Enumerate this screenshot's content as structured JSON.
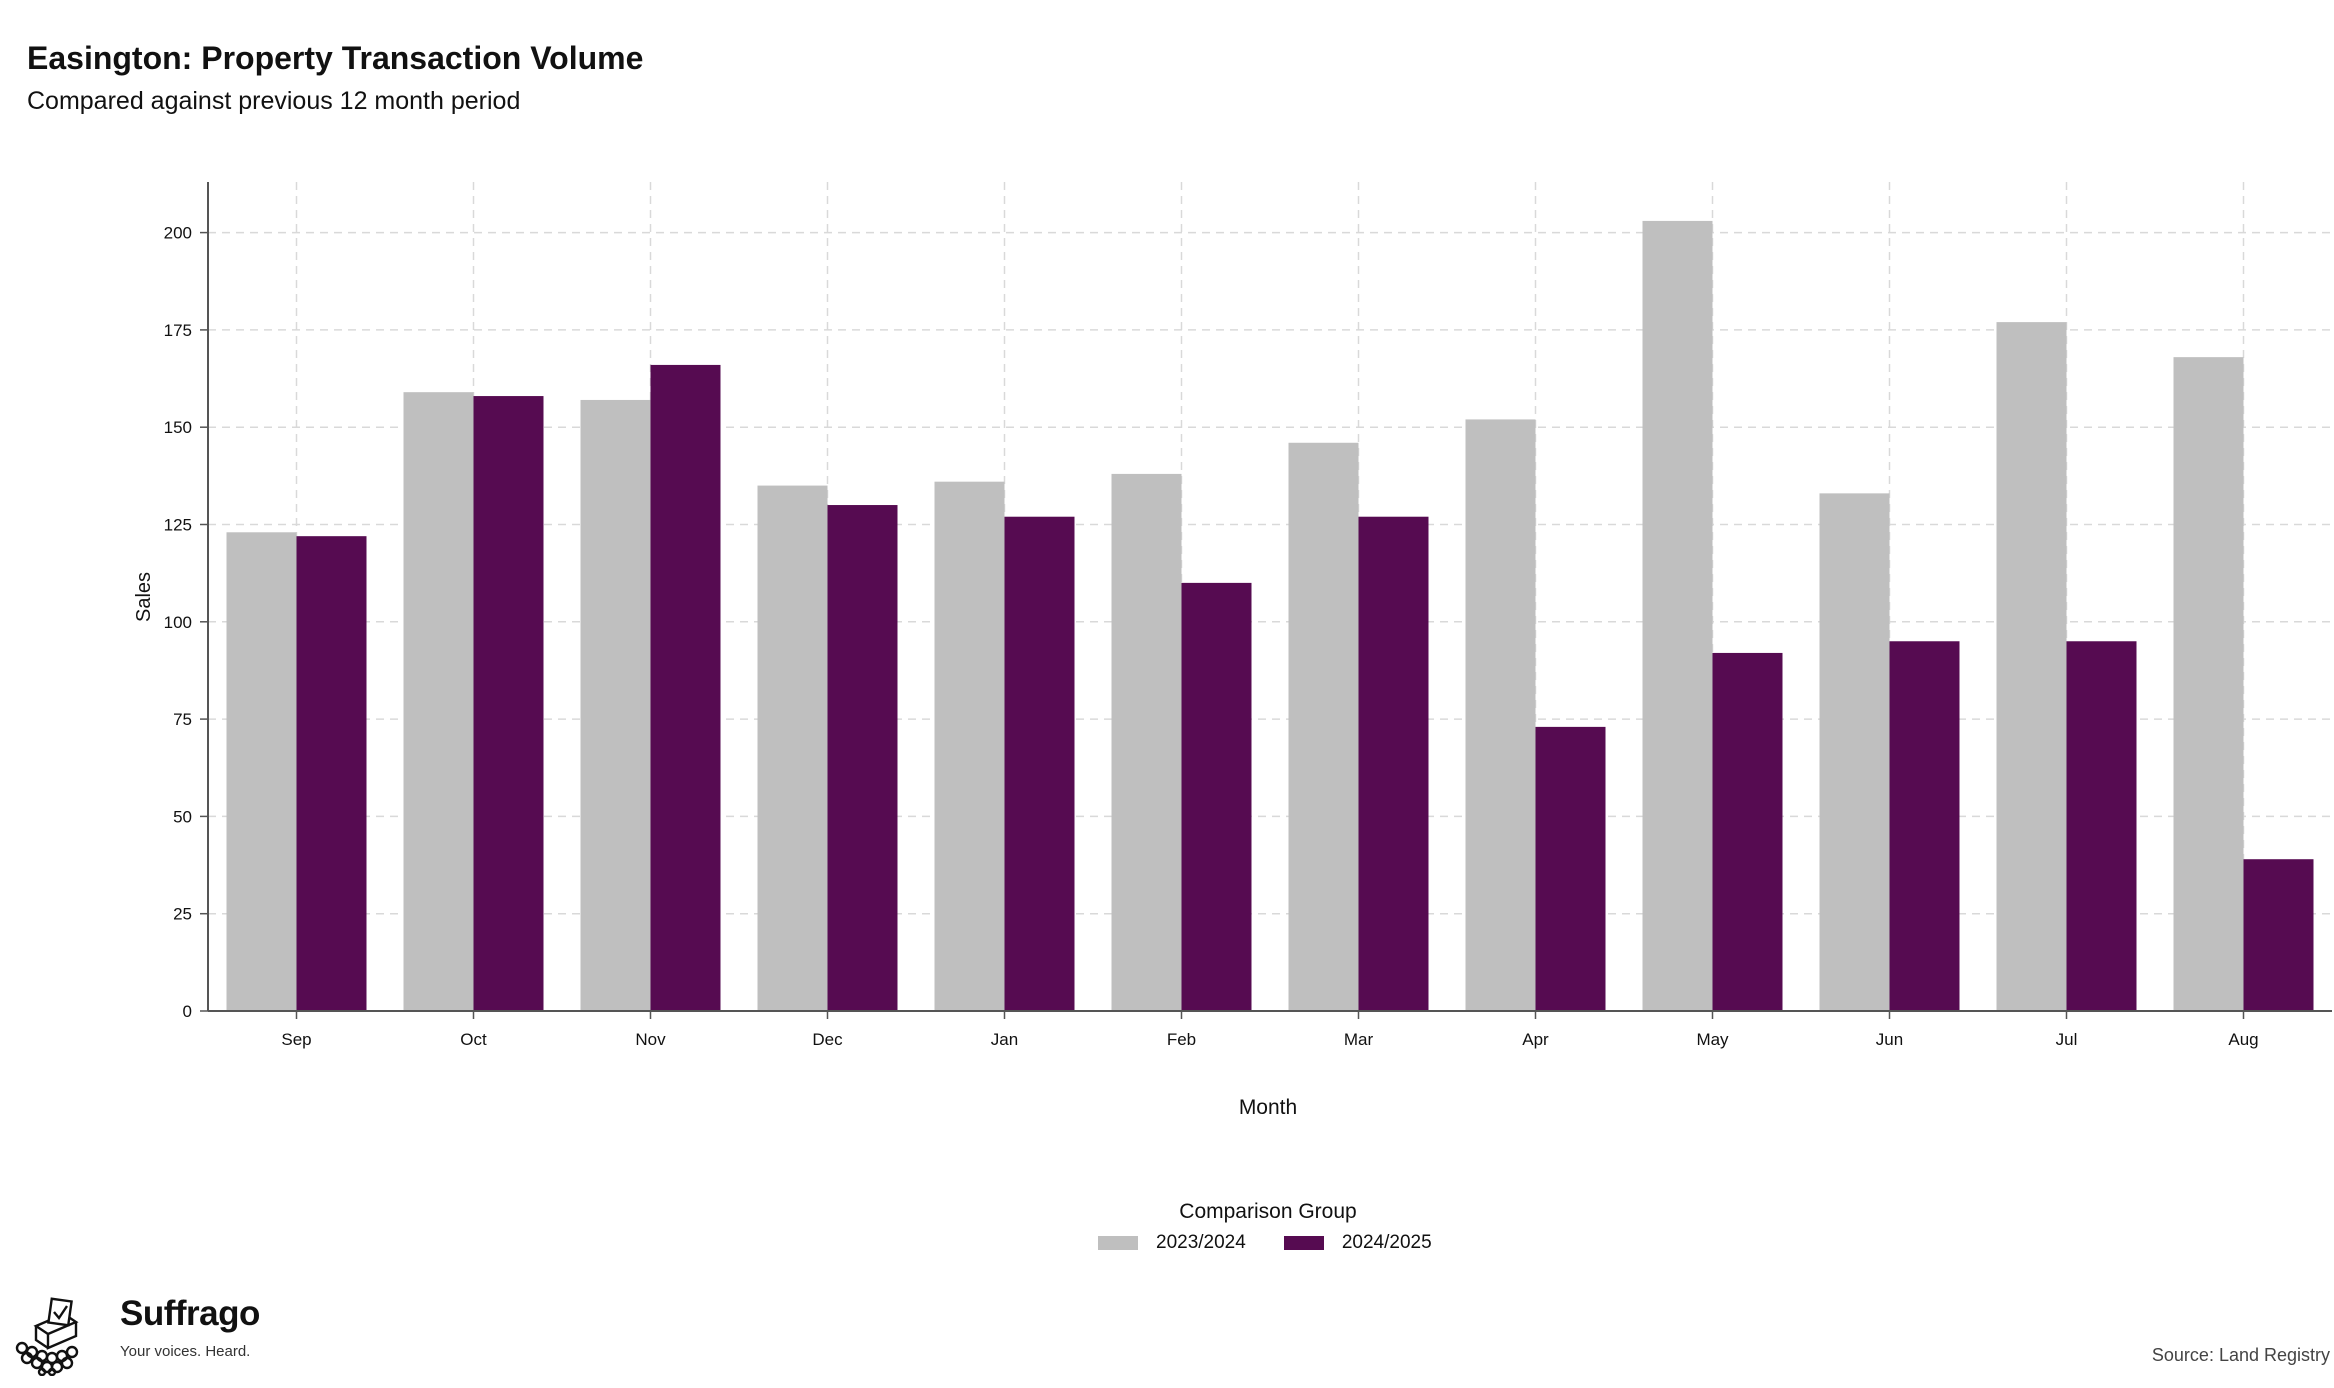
{
  "header": {
    "title": "Easington: Property Transaction Volume",
    "subtitle": "Compared against previous 12 month period"
  },
  "chart_data": {
    "type": "bar",
    "categories": [
      "Sep",
      "Oct",
      "Nov",
      "Dec",
      "Jan",
      "Feb",
      "Mar",
      "Apr",
      "May",
      "Jun",
      "Jul",
      "Aug"
    ],
    "series": [
      {
        "name": "2023/2024",
        "color": "#bfbfbf",
        "values": [
          123,
          159,
          157,
          135,
          136,
          138,
          146,
          152,
          203,
          133,
          177,
          168
        ]
      },
      {
        "name": "2024/2025",
        "color": "#560b51",
        "values": [
          122,
          158,
          166,
          130,
          127,
          110,
          127,
          73,
          92,
          95,
          95,
          39
        ]
      }
    ],
    "xlabel": "Month",
    "ylabel": "Sales",
    "ylim": [
      0,
      213
    ],
    "yticks": [
      0,
      25,
      50,
      75,
      100,
      125,
      150,
      175,
      200
    ],
    "grid": true,
    "legend_title": "Comparison Group",
    "legend_position": "bottom"
  },
  "footer": {
    "brand_name": "Suffrago",
    "brand_tagline": "Your voices. Heard.",
    "source": "Source: Land Registry"
  }
}
